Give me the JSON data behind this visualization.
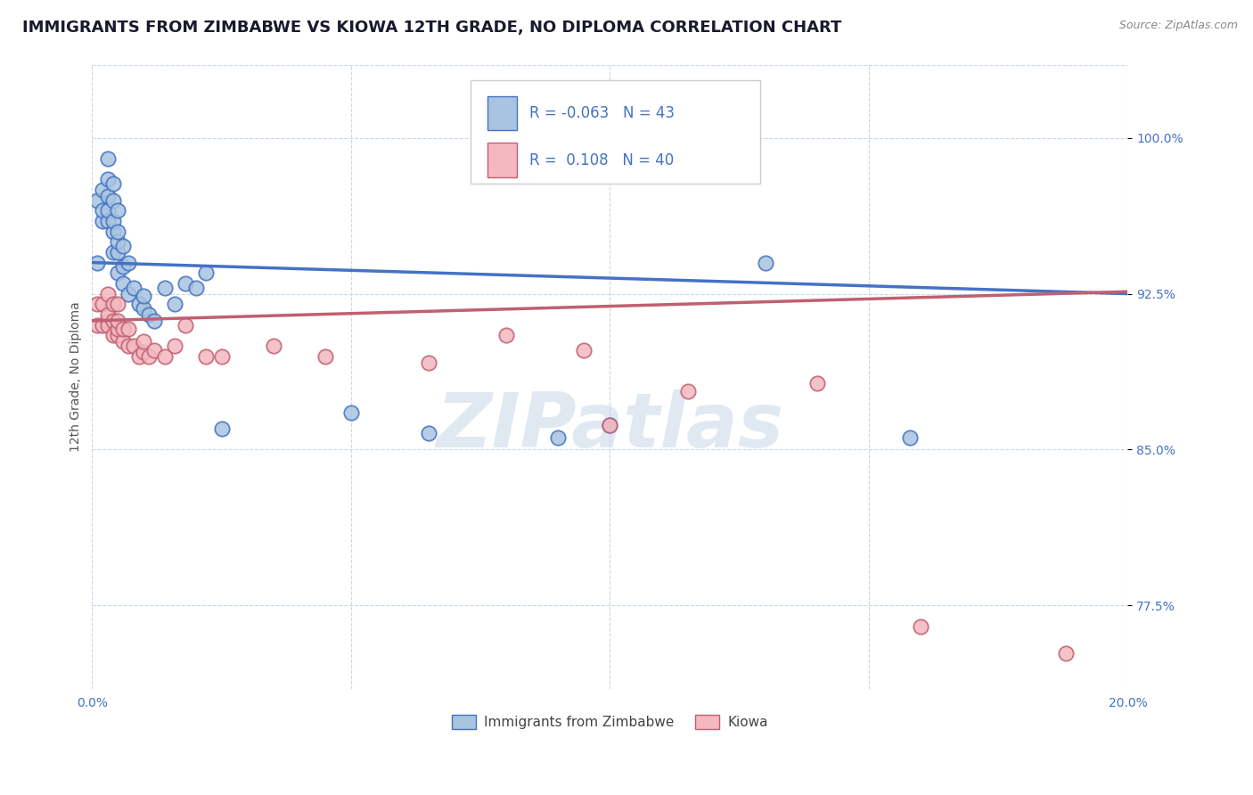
{
  "title": "IMMIGRANTS FROM ZIMBABWE VS KIOWA 12TH GRADE, NO DIPLOMA CORRELATION CHART",
  "source_text": "Source: ZipAtlas.com",
  "ylabel": "12th Grade, No Diploma",
  "legend_label_blue": "Immigrants from Zimbabwe",
  "legend_label_pink": "Kiowa",
  "R_blue": -0.063,
  "N_blue": 43,
  "R_pink": 0.108,
  "N_pink": 40,
  "xlim": [
    0.0,
    0.2
  ],
  "ylim": [
    0.735,
    1.035
  ],
  "xticks": [
    0.0,
    0.05,
    0.1,
    0.15,
    0.2
  ],
  "xtick_labels": [
    "0.0%",
    "",
    "",
    "",
    "20.0%"
  ],
  "yticks": [
    0.775,
    0.85,
    0.925,
    1.0
  ],
  "ytick_labels": [
    "77.5%",
    "85.0%",
    "92.5%",
    "100.0%"
  ],
  "color_blue": "#a8c4e0",
  "color_blue_line": "#4472C4",
  "color_blue_edge": "#4472C4",
  "color_pink": "#f4b8c1",
  "color_pink_line": "#c06070",
  "color_pink_edge": "#c06070",
  "background_color": "#ffffff",
  "grid_color": "#c8d8e8",
  "title_color": "#1a1a2e",
  "source_color": "#888888",
  "blue_scatter_x": [
    0.001,
    0.001,
    0.002,
    0.002,
    0.002,
    0.003,
    0.003,
    0.003,
    0.003,
    0.003,
    0.004,
    0.004,
    0.004,
    0.004,
    0.004,
    0.005,
    0.005,
    0.005,
    0.005,
    0.005,
    0.006,
    0.006,
    0.006,
    0.007,
    0.007,
    0.008,
    0.009,
    0.01,
    0.01,
    0.011,
    0.012,
    0.014,
    0.016,
    0.018,
    0.02,
    0.022,
    0.025,
    0.05,
    0.065,
    0.09,
    0.1,
    0.13,
    0.158
  ],
  "blue_scatter_y": [
    0.94,
    0.97,
    0.975,
    0.96,
    0.965,
    0.96,
    0.965,
    0.972,
    0.98,
    0.99,
    0.945,
    0.955,
    0.96,
    0.97,
    0.978,
    0.935,
    0.945,
    0.95,
    0.955,
    0.965,
    0.93,
    0.938,
    0.948,
    0.925,
    0.94,
    0.928,
    0.92,
    0.918,
    0.924,
    0.915,
    0.912,
    0.928,
    0.92,
    0.93,
    0.928,
    0.935,
    0.86,
    0.868,
    0.858,
    0.856,
    0.862,
    0.94,
    0.856
  ],
  "pink_scatter_x": [
    0.001,
    0.001,
    0.002,
    0.002,
    0.003,
    0.003,
    0.003,
    0.003,
    0.004,
    0.004,
    0.004,
    0.005,
    0.005,
    0.005,
    0.005,
    0.006,
    0.006,
    0.007,
    0.007,
    0.008,
    0.009,
    0.01,
    0.01,
    0.011,
    0.012,
    0.014,
    0.016,
    0.018,
    0.022,
    0.025,
    0.035,
    0.045,
    0.065,
    0.08,
    0.095,
    0.1,
    0.115,
    0.14,
    0.16,
    0.188
  ],
  "pink_scatter_y": [
    0.91,
    0.92,
    0.91,
    0.92,
    0.912,
    0.91,
    0.915,
    0.925,
    0.905,
    0.912,
    0.92,
    0.905,
    0.908,
    0.912,
    0.92,
    0.902,
    0.908,
    0.9,
    0.908,
    0.9,
    0.895,
    0.897,
    0.902,
    0.895,
    0.898,
    0.895,
    0.9,
    0.91,
    0.895,
    0.895,
    0.9,
    0.895,
    0.892,
    0.905,
    0.898,
    0.862,
    0.878,
    0.882,
    0.765,
    0.752
  ],
  "blue_line_y0": 0.94,
  "blue_line_y1": 0.925,
  "pink_line_y0": 0.912,
  "pink_line_y1": 0.926,
  "watermark_text": "ZIPatlas",
  "title_fontsize": 13,
  "axis_fontsize": 10,
  "tick_fontsize": 10,
  "legend_fontsize": 12
}
